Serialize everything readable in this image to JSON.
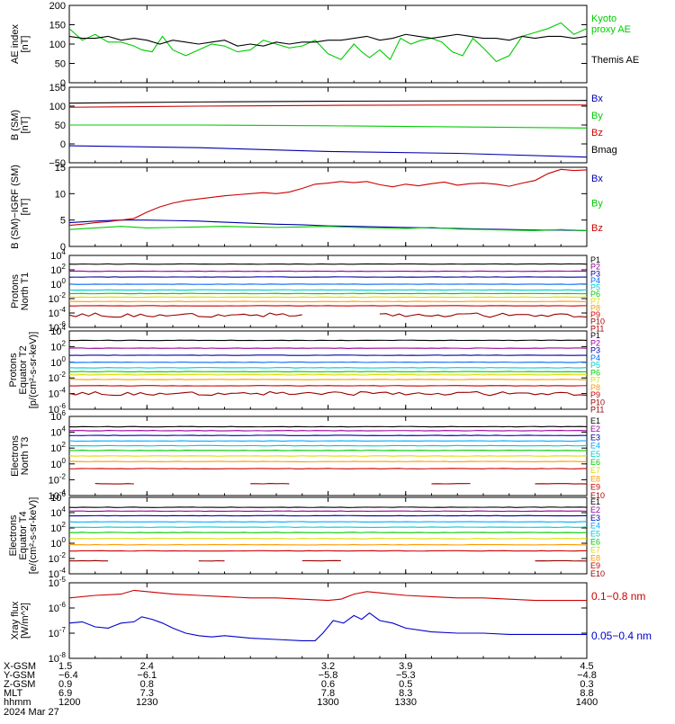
{
  "chart_data": [
    {
      "type": "line",
      "ylabel_lines": [
        "AE index",
        "[nT]"
      ],
      "ylim": [
        0,
        200
      ],
      "yticks": [
        "0",
        "50",
        "100",
        "150",
        "200"
      ],
      "xlim": [
        1200,
        1400
      ],
      "series": [
        {
          "name": "Kyoto proxy AE",
          "legend_lines": [
            "Kyoto",
            "proxy AE"
          ],
          "color": "#00cc00",
          "x": [
            1200,
            1205,
            1210,
            1215,
            1220,
            1225,
            1228,
            1232,
            1236,
            1240,
            1245,
            1250,
            1255,
            1260,
            1265,
            1270,
            1275,
            1280,
            1285,
            1290,
            1295,
            1300,
            1305,
            1310,
            1313,
            1316,
            1320,
            1324,
            1328,
            1332,
            1336,
            1340,
            1344,
            1348,
            1352,
            1356,
            1360,
            1365,
            1370,
            1375,
            1380,
            1385,
            1390,
            1395,
            1400
          ],
          "y": [
            140,
            110,
            125,
            105,
            105,
            95,
            85,
            80,
            120,
            85,
            70,
            85,
            100,
            95,
            80,
            85,
            110,
            100,
            90,
            95,
            110,
            75,
            60,
            100,
            80,
            65,
            85,
            60,
            115,
            100,
            110,
            115,
            105,
            80,
            70,
            115,
            90,
            55,
            70,
            120,
            130,
            140,
            155,
            125,
            140
          ]
        },
        {
          "name": "Themis AE",
          "legend_lines": [
            "Themis AE"
          ],
          "color": "#000000",
          "x": [
            1200,
            1205,
            1210,
            1215,
            1220,
            1225,
            1230,
            1235,
            1240,
            1245,
            1250,
            1255,
            1260,
            1265,
            1270,
            1275,
            1280,
            1285,
            1290,
            1295,
            1300,
            1305,
            1310,
            1315,
            1320,
            1325,
            1330,
            1335,
            1340,
            1345,
            1350,
            1355,
            1360,
            1365,
            1370,
            1375,
            1380,
            1385,
            1390,
            1395,
            1400
          ],
          "y": [
            120,
            115,
            115,
            120,
            110,
            115,
            110,
            100,
            110,
            105,
            100,
            105,
            110,
            95,
            100,
            95,
            105,
            100,
            105,
            105,
            110,
            110,
            115,
            120,
            110,
            115,
            125,
            120,
            115,
            120,
            125,
            120,
            115,
            115,
            110,
            120,
            115,
            120,
            120,
            115,
            120
          ]
        }
      ]
    },
    {
      "type": "line",
      "ylabel_lines": [
        "B (SM)",
        "[nT]"
      ],
      "ylabel_sub": "t",
      "ylim": [
        -50,
        150
      ],
      "yticks": [
        "−50",
        "0",
        "50",
        "100",
        "150"
      ],
      "xlim": [
        1200,
        1400
      ],
      "series": [
        {
          "name": "Bx",
          "color": "#0000aa",
          "x": [
            1200,
            1250,
            1300,
            1350,
            1400
          ],
          "y": [
            -5,
            -10,
            -20,
            -25,
            -35
          ]
        },
        {
          "name": "By",
          "color": "#00cc00",
          "x": [
            1200,
            1250,
            1300,
            1350,
            1400
          ],
          "y": [
            50,
            50,
            48,
            45,
            42
          ]
        },
        {
          "name": "Bz",
          "color": "#cc0000",
          "x": [
            1200,
            1250,
            1300,
            1350,
            1400
          ],
          "y": [
            97,
            100,
            102,
            103,
            103
          ]
        },
        {
          "name": "Bmag",
          "color": "#000000",
          "x": [
            1200,
            1250,
            1300,
            1350,
            1400
          ],
          "y": [
            108,
            111,
            113,
            114,
            115
          ]
        }
      ]
    },
    {
      "type": "line",
      "ylabel_lines": [
        "B (SM)−IGRF (SM)",
        "[nT]"
      ],
      "ylim": [
        0,
        15
      ],
      "yticks": [
        "0",
        "5",
        "10",
        "15"
      ],
      "xlim": [
        1200,
        1400
      ],
      "series": [
        {
          "name": "Bx",
          "color": "#0000aa",
          "x": [
            1200,
            1210,
            1220,
            1230,
            1240,
            1250,
            1260,
            1270,
            1280,
            1290,
            1300,
            1310,
            1320,
            1330,
            1340,
            1350,
            1360,
            1370,
            1380,
            1390,
            1400
          ],
          "y": [
            4.5,
            4.8,
            5.0,
            5.0,
            4.9,
            4.8,
            4.6,
            4.4,
            4.2,
            4.1,
            3.9,
            3.8,
            3.7,
            3.6,
            3.5,
            3.4,
            3.3,
            3.2,
            3.1,
            3.1,
            3.0
          ]
        },
        {
          "name": "By",
          "color": "#00cc00",
          "x": [
            1200,
            1210,
            1220,
            1230,
            1240,
            1250,
            1260,
            1270,
            1280,
            1290,
            1300,
            1310,
            1320,
            1330,
            1340,
            1350,
            1360,
            1370,
            1380,
            1390,
            1400
          ],
          "y": [
            3.2,
            3.5,
            3.8,
            3.5,
            3.6,
            3.7,
            3.8,
            3.7,
            3.6,
            3.7,
            3.8,
            3.6,
            3.5,
            3.4,
            3.6,
            3.3,
            3.2,
            3.1,
            3.0,
            3.2,
            3.0
          ]
        },
        {
          "name": "Bz",
          "color": "#cc0000",
          "x": [
            1200,
            1205,
            1210,
            1215,
            1220,
            1225,
            1230,
            1235,
            1240,
            1245,
            1250,
            1255,
            1260,
            1265,
            1270,
            1275,
            1280,
            1285,
            1290,
            1295,
            1300,
            1305,
            1310,
            1315,
            1320,
            1325,
            1330,
            1335,
            1340,
            1345,
            1350,
            1355,
            1360,
            1365,
            1370,
            1375,
            1380,
            1385,
            1390,
            1395,
            1400
          ],
          "y": [
            4.0,
            4.2,
            4.5,
            4.7,
            5.0,
            5.3,
            6.5,
            7.5,
            8.2,
            8.7,
            9.0,
            9.3,
            9.6,
            9.8,
            10.0,
            10.2,
            10.0,
            10.3,
            11.0,
            11.8,
            12.0,
            12.3,
            12.1,
            12.3,
            11.7,
            11.3,
            11.8,
            11.5,
            11.9,
            12.2,
            11.6,
            11.9,
            12.0,
            11.8,
            11.4,
            12.0,
            12.5,
            13.8,
            14.6,
            14.4,
            14.5
          ]
        }
      ]
    },
    {
      "type": "line",
      "ylabel_lines": [
        "Protons",
        "North T1"
      ],
      "ylog": true,
      "ylim_exp": [
        -6,
        4
      ],
      "yticks_exp": [
        -6,
        -4,
        -2,
        0,
        2,
        4
      ],
      "xlim": [
        1200,
        1400
      ],
      "series": [
        {
          "name": "P1",
          "color": "#000000",
          "level": 2.8
        },
        {
          "name": "P2",
          "color": "#990099",
          "level": 1.8
        },
        {
          "name": "P3",
          "color": "#0000aa",
          "level": 1.0
        },
        {
          "name": "P4",
          "color": "#0066ff",
          "level": 0.0
        },
        {
          "name": "P5",
          "color": "#00cccc",
          "level": -0.8
        },
        {
          "name": "P6",
          "color": "#00cc00",
          "level": -1.3
        },
        {
          "name": "P7",
          "color": "#dddd00",
          "level": -1.8
        },
        {
          "name": "P8",
          "color": "#ff9900",
          "level": -2.4
        },
        {
          "name": "P9",
          "color": "#cc0000",
          "level": -3.0
        },
        {
          "name": "P10",
          "color": "#990000",
          "level": -4.3,
          "wobble": 0.6,
          "gaps": [
            [
              1290,
              1320
            ]
          ]
        },
        {
          "name": "P11",
          "color": "#990000",
          "level": null
        }
      ]
    },
    {
      "type": "line",
      "ylabel_lines": [
        "Protons",
        "Equator T2",
        "[p/(cm²-s-sr-keV)]"
      ],
      "ylog": true,
      "ylim_exp": [
        -6,
        4
      ],
      "yticks_exp": [
        -6,
        -4,
        -2,
        0,
        2,
        4
      ],
      "xlim": [
        1200,
        1400
      ],
      "series": [
        {
          "name": "P1",
          "color": "#000000",
          "level": 2.8
        },
        {
          "name": "P2",
          "color": "#990099",
          "level": 1.8
        },
        {
          "name": "P3",
          "color": "#0000aa",
          "level": 0.9
        },
        {
          "name": "P4",
          "color": "#0066ff",
          "level": 0.0
        },
        {
          "name": "P5",
          "color": "#00cccc",
          "level": -0.7
        },
        {
          "name": "P6",
          "color": "#00cc00",
          "level": -1.2
        },
        {
          "name": "P7",
          "color": "#dddd00",
          "level": -1.6
        },
        {
          "name": "P8",
          "color": "#ff9900",
          "level": -2.2
        },
        {
          "name": "P9",
          "color": "#cc0000",
          "level": -3.0
        },
        {
          "name": "P10",
          "color": "#990000",
          "level": -4.0,
          "wobble": 0.5
        },
        {
          "name": "P11",
          "color": "#990000",
          "level": null
        }
      ]
    },
    {
      "type": "line",
      "ylabel_lines": [
        "Electrons",
        "North T3"
      ],
      "ylog": true,
      "ylim_exp": [
        -4,
        6
      ],
      "yticks_exp": [
        -4,
        -2,
        0,
        2,
        4,
        6
      ],
      "xlim": [
        1200,
        1400
      ],
      "series": [
        {
          "name": "E1",
          "color": "#000000",
          "level": 4.7
        },
        {
          "name": "E2",
          "color": "#990099",
          "level": 4.2
        },
        {
          "name": "E3",
          "color": "#0000aa",
          "level": 3.6
        },
        {
          "name": "E4",
          "color": "#00aaff",
          "level": 2.9
        },
        {
          "name": "E5",
          "color": "#00cccc",
          "level": 2.3
        },
        {
          "name": "E6",
          "color": "#00cc00",
          "level": 1.7
        },
        {
          "name": "E7",
          "color": "#dddd00",
          "level": 1.0
        },
        {
          "name": "E8",
          "color": "#ff9900",
          "level": 0.3
        },
        {
          "name": "E9",
          "color": "#cc0000",
          "level": -0.6
        },
        {
          "name": "E10",
          "color": "#990000",
          "level": -2.5,
          "segments": [
            [
              1210,
              1225
            ],
            [
              1270,
              1285
            ],
            [
              1340,
              1355
            ],
            [
              1380,
              1400
            ]
          ]
        }
      ]
    },
    {
      "type": "line",
      "ylabel_lines": [
        "Electrons",
        "Equator T4",
        "[e/(cm²-s-sr-keV)]"
      ],
      "ylog": true,
      "ylim_exp": [
        -4,
        6
      ],
      "yticks_exp": [
        -4,
        -2,
        0,
        2,
        4,
        6
      ],
      "xlim": [
        1200,
        1400
      ],
      "series": [
        {
          "name": "E1",
          "color": "#000000",
          "level": 4.7
        },
        {
          "name": "E2",
          "color": "#990099",
          "level": 4.2
        },
        {
          "name": "E3",
          "color": "#0000aa",
          "level": 3.6
        },
        {
          "name": "E4",
          "color": "#00aaff",
          "level": 2.8
        },
        {
          "name": "E5",
          "color": "#00cccc",
          "level": 2.1
        },
        {
          "name": "E6",
          "color": "#00cc00",
          "level": 1.4
        },
        {
          "name": "E7",
          "color": "#dddd00",
          "level": 0.6
        },
        {
          "name": "E8",
          "color": "#ff9900",
          "level": -0.2
        },
        {
          "name": "E9",
          "color": "#cc0000",
          "level": -1.0
        },
        {
          "name": "E10",
          "color": "#990000",
          "level": -2.3,
          "segments": [
            [
              1200,
              1215
            ],
            [
              1250,
              1260
            ],
            [
              1290,
              1305
            ],
            [
              1380,
              1400
            ]
          ]
        }
      ]
    },
    {
      "type": "line",
      "ylabel_lines": [
        "Xray flux",
        "[W/m^2]"
      ],
      "ylog": true,
      "ylim_exp": [
        -8,
        -5
      ],
      "yticks_exp": [
        -8,
        -7,
        -6,
        -5
      ],
      "xlim": [
        1200,
        1400
      ],
      "series": [
        {
          "name": "0.1−0.8 nm",
          "color": "#cc0000",
          "x": [
            1200,
            1210,
            1220,
            1225,
            1230,
            1240,
            1250,
            1260,
            1270,
            1280,
            1290,
            1300,
            1305,
            1310,
            1315,
            1320,
            1330,
            1340,
            1350,
            1360,
            1370,
            1380,
            1390,
            1400
          ],
          "y": [
            -5.6,
            -5.5,
            -5.45,
            -5.3,
            -5.35,
            -5.45,
            -5.5,
            -5.55,
            -5.6,
            -5.6,
            -5.65,
            -5.7,
            -5.65,
            -5.45,
            -5.35,
            -5.4,
            -5.5,
            -5.55,
            -5.6,
            -5.6,
            -5.65,
            -5.7,
            -5.7,
            -5.7
          ]
        },
        {
          "name": "0.05−0.4 nm",
          "color": "#0000cc",
          "x": [
            1200,
            1205,
            1210,
            1215,
            1220,
            1225,
            1228,
            1232,
            1236,
            1240,
            1245,
            1250,
            1255,
            1260,
            1270,
            1280,
            1290,
            1295,
            1298,
            1302,
            1306,
            1310,
            1313,
            1316,
            1320,
            1325,
            1330,
            1340,
            1350,
            1360,
            1370,
            1380,
            1390,
            1400
          ],
          "y": [
            -6.6,
            -6.55,
            -6.75,
            -6.8,
            -6.6,
            -6.55,
            -6.35,
            -6.45,
            -6.6,
            -6.8,
            -7.0,
            -7.1,
            -7.15,
            -7.1,
            -7.2,
            -7.25,
            -7.3,
            -7.3,
            -7.0,
            -6.5,
            -6.6,
            -6.3,
            -6.45,
            -6.2,
            -6.5,
            -6.6,
            -6.8,
            -6.95,
            -7.0,
            -7.0,
            -7.05,
            -7.05,
            -7.05,
            -7.05
          ]
        }
      ]
    }
  ],
  "x_axis": {
    "row_labels": [
      "X-GSM",
      "Y-GSM",
      "Z-GSM",
      "MLT",
      "hhmm"
    ],
    "columns": [
      {
        "x": 1200,
        "values": [
          "1.5",
          "−6.4",
          "0.9",
          "6.9",
          "1200"
        ]
      },
      {
        "x": 1230,
        "values": [
          "2.4",
          "−6.1",
          "0.8",
          "7.3",
          "1230"
        ]
      },
      {
        "x": 1300,
        "values": [
          "3.2",
          "−5.8",
          "0.6",
          "7.8",
          "1300"
        ]
      },
      {
        "x": 1330,
        "values": [
          "3.9",
          "−5.3",
          "0.5",
          "8.3",
          "1330"
        ]
      },
      {
        "x": 1400,
        "values": [
          "4.5",
          "−4.8",
          "0.3",
          "8.8",
          "1400"
        ]
      }
    ],
    "date": "2024 Mar 27"
  }
}
